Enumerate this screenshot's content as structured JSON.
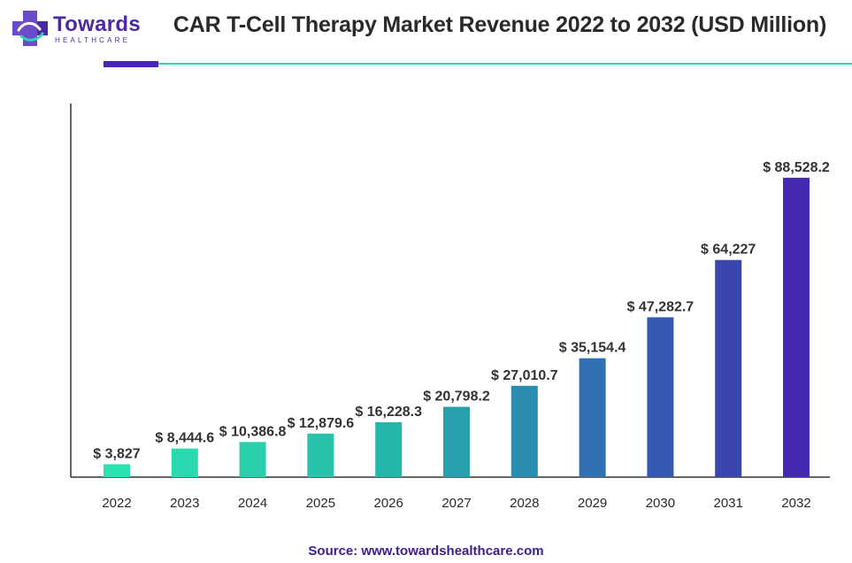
{
  "brand": {
    "name": "Towards",
    "subtitle": "HEALTHCARE",
    "colors": {
      "primary": "#4b2a9e",
      "accent": "#2ed3b3",
      "accent_bar": "#4a23b8"
    }
  },
  "source_text": "Source: www.towardshealthcare.com",
  "chart_data": {
    "type": "bar",
    "title": "CAR T-Cell Therapy Market Revenue 2022 to 2032 (USD Million)",
    "xlabel": "",
    "ylabel": "",
    "ylim": [
      0,
      100000
    ],
    "grid": false,
    "categories": [
      "2022",
      "2023",
      "2024",
      "2025",
      "2026",
      "2027",
      "2028",
      "2029",
      "2030",
      "2031",
      "2032"
    ],
    "values": [
      3827,
      8444.6,
      10386.8,
      12879.6,
      16228.3,
      20798.2,
      27010.7,
      35154.4,
      47282.7,
      64227,
      88528.2
    ],
    "value_labels": [
      "$ 3,827",
      "$ 8,444.6",
      "$ 10,386.8",
      "$ 12,879.6",
      "$ 16,228.3",
      "$ 20,798.2",
      "$ 27,010.7",
      "$ 35,154.4",
      "$ 47,282.7",
      "$ 64,227",
      "$ 88,528.2"
    ],
    "bar_colors": [
      "#2ee3b3",
      "#2bd9b0",
      "#29cfab",
      "#27c3ab",
      "#25b6ab",
      "#279fac",
      "#2c8cb0",
      "#3171b3",
      "#3559b0",
      "#3a46ad",
      "#4529b1"
    ]
  }
}
